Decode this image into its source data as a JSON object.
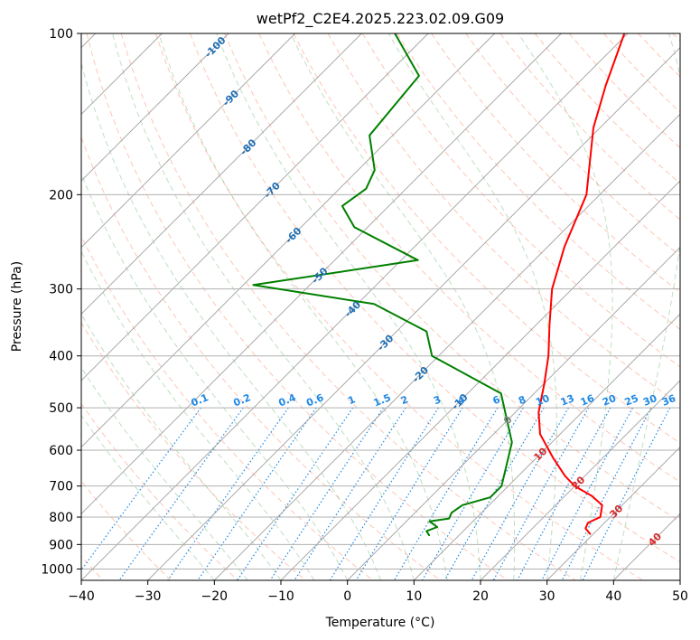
{
  "chart_data": {
    "type": "line",
    "title": "wetPf2_C2E4.2025.223.02.09.G09",
    "xlabel": "Temperature (°C)",
    "ylabel": "Pressure (hPa)",
    "xlim": [
      -40,
      50
    ],
    "ylim": [
      1050,
      100
    ],
    "y_scale": "log",
    "grid": true,
    "x_ticks": [
      "−40",
      "−30",
      "−20",
      "−10",
      "0",
      "10",
      "20",
      "30",
      "40",
      "50"
    ],
    "x_tick_values": [
      -40,
      -30,
      -20,
      -10,
      0,
      10,
      20,
      30,
      40,
      50
    ],
    "y_ticks": [
      "100",
      "200",
      "300",
      "400",
      "500",
      "600",
      "700",
      "800",
      "900",
      "1000"
    ],
    "y_tick_values": [
      100,
      200,
      300,
      400,
      500,
      600,
      700,
      800,
      900,
      1000
    ],
    "isotherm_labels": [
      "-100",
      "-90",
      "-80",
      "-70",
      "-60",
      "-50",
      "-40",
      "-30",
      "-20",
      "-10"
    ],
    "isotherm_values": [
      -100,
      -90,
      -80,
      -70,
      -60,
      -50,
      -40,
      -30,
      -20,
      -10
    ],
    "zero_isotherm_label": "0",
    "warm_isotherm_labels": [
      "10",
      "20",
      "30",
      "40"
    ],
    "warm_isotherm_values": [
      10,
      20,
      30,
      40
    ],
    "mixing_ratio_labels": [
      "0.1",
      "0.2",
      "0.4",
      "0.6",
      "1",
      "1.5",
      "2",
      "3",
      "4",
      "6",
      "8",
      "10",
      "13",
      "16",
      "20",
      "25",
      "30",
      "36"
    ],
    "mixing_ratio_values": [
      0.1,
      0.2,
      0.4,
      0.6,
      1,
      1.5,
      2,
      3,
      4,
      6,
      8,
      10,
      13,
      16,
      20,
      25,
      30,
      36
    ],
    "colors": {
      "temperature": "#ff0000",
      "dewpoint": "#008000",
      "isotherm": "#a0a0a0",
      "isotherm_label": "#1f6fb4",
      "warm_label": "#d62728",
      "zero_label": "#808080",
      "mixing_ratio": "#1e88e5",
      "dry_adiabat": "#fa8060",
      "moist_adiabat": "#60b060",
      "grid": "#b0b0b0"
    },
    "series": [
      {
        "key": "temperature",
        "points": [
          [
            29.5,
            860
          ],
          [
            28.0,
            840
          ],
          [
            27.5,
            820
          ],
          [
            28.5,
            800
          ],
          [
            27.0,
            760
          ],
          [
            24.0,
            730
          ],
          [
            20.0,
            700
          ],
          [
            17.0,
            670
          ],
          [
            12.5,
            620
          ],
          [
            7.0,
            560
          ],
          [
            3.5,
            510
          ],
          [
            0.0,
            450
          ],
          [
            -3.5,
            400
          ],
          [
            -8.0,
            350
          ],
          [
            -13.0,
            300
          ],
          [
            -17.5,
            250
          ],
          [
            -22.0,
            200
          ],
          [
            -31.0,
            150
          ],
          [
            -35.5,
            125
          ],
          [
            -40.5,
            100
          ]
        ]
      },
      {
        "key": "dewpoint",
        "points": [
          [
            5.5,
            865
          ],
          [
            4.5,
            850
          ],
          [
            5.5,
            835
          ],
          [
            3.5,
            815
          ],
          [
            6.0,
            805
          ],
          [
            5.5,
            785
          ],
          [
            6.0,
            760
          ],
          [
            9.0,
            735
          ],
          [
            9.0,
            700
          ],
          [
            4.0,
            580
          ],
          [
            -5.0,
            470
          ],
          [
            -21.0,
            400
          ],
          [
            -25.5,
            360
          ],
          [
            -37.5,
            320
          ],
          [
            -58.5,
            295
          ],
          [
            -37.5,
            265
          ],
          [
            -52.0,
            230
          ],
          [
            -57.0,
            210
          ],
          [
            -56.0,
            195
          ],
          [
            -57.5,
            180
          ],
          [
            -63.5,
            155
          ],
          [
            -65.0,
            120
          ],
          [
            -75.0,
            100
          ]
        ]
      }
    ]
  }
}
